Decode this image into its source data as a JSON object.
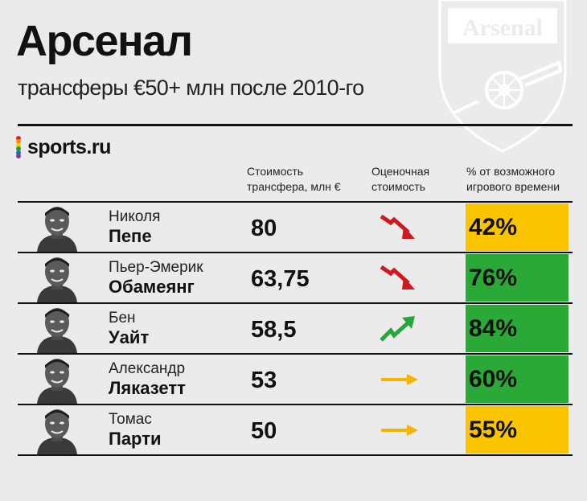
{
  "title": "Арсенал",
  "subtitle": "трансферы €50+ млн после 2010-го",
  "logo": {
    "text": "sports.ru",
    "dot_colors": [
      "#e2231a",
      "#f39200",
      "#ffcc00",
      "#2b9a3b",
      "#1d71b8",
      "#7b3f98"
    ]
  },
  "crest": {
    "text": "Arsenal"
  },
  "columns": {
    "cost": [
      "Стоимость",
      "трансфера, млн €"
    ],
    "trend": [
      "Оценочная",
      "стоимость"
    ],
    "pct": [
      "% от возможного",
      "игрового времени"
    ]
  },
  "colors": {
    "down": "#d0181f",
    "up": "#27a63a",
    "flat": "#f2b600",
    "pct_yellow": "#fbc400",
    "pct_green": "#2aa838"
  },
  "players": [
    {
      "first": "Николя",
      "last": "Пепе",
      "cost": "80",
      "trend": "down",
      "pct": "42%",
      "pct_color": "yellow"
    },
    {
      "first": "Пьер-Эмерик",
      "last": "Обамеянг",
      "cost": "63,75",
      "trend": "down",
      "pct": "76%",
      "pct_color": "green"
    },
    {
      "first": "Бен",
      "last": "Уайт",
      "cost": "58,5",
      "trend": "up",
      "pct": "84%",
      "pct_color": "green"
    },
    {
      "first": "Александр",
      "last": "Ляказетт",
      "cost": "53",
      "trend": "flat",
      "pct": "60%",
      "pct_color": "green"
    },
    {
      "first": "Томас",
      "last": "Парти",
      "cost": "50",
      "trend": "flat",
      "pct": "55%",
      "pct_color": "yellow"
    }
  ]
}
